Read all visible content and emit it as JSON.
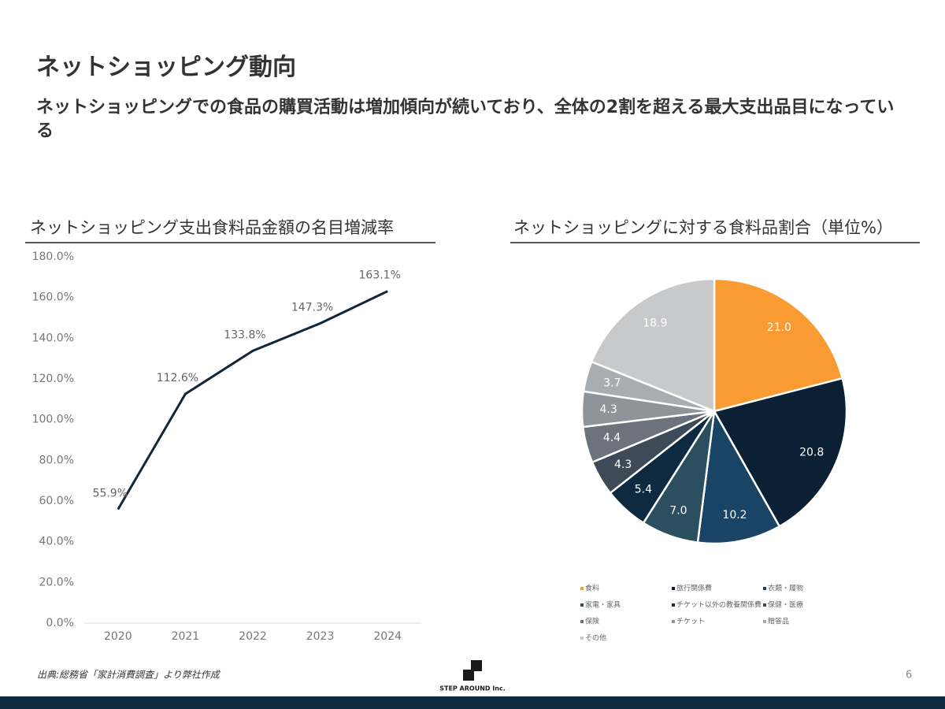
{
  "title": "ネットショッピング動向",
  "subtitle": "ネットショッピングでの食品の購買活動は増加傾向が続いており、全体の2割を超える最大支出品目になっている",
  "chart_data": [
    {
      "type": "line",
      "title": "ネットショッピング支出食料品金額の名目増減率",
      "categories": [
        "2020",
        "2021",
        "2022",
        "2023",
        "2024"
      ],
      "values": [
        55.9,
        112.6,
        133.8,
        147.3,
        163.1
      ],
      "value_labels": [
        "55.9%",
        "112.6%",
        "133.8%",
        "147.3%",
        "163.1%"
      ],
      "color": "#12263a",
      "grid": false,
      "ylim": [
        0,
        180
      ],
      "yticks": [
        {
          "value": 0,
          "label": "0.0%"
        },
        {
          "value": 20,
          "label": "20.0%"
        },
        {
          "value": 40,
          "label": "40.0%"
        },
        {
          "value": 60,
          "label": "60.0%"
        },
        {
          "value": 80,
          "label": "80.0%"
        },
        {
          "value": 100,
          "label": "100.0%"
        },
        {
          "value": 120,
          "label": "120.0%"
        },
        {
          "value": 140,
          "label": "140.0%"
        },
        {
          "value": 160,
          "label": "160.0%"
        },
        {
          "value": 180,
          "label": "180.0%"
        }
      ]
    },
    {
      "type": "pie",
      "title": "ネットショッピングに対する食料品割合（単位%）",
      "categories": [
        "食料",
        "旅行関係費",
        "衣類・履物",
        "家電・家具",
        "チケット以外の教養関係費",
        "保健・医療",
        "保険",
        "チケット",
        "贈答品",
        "その他"
      ],
      "values": [
        21.0,
        20.8,
        10.2,
        7.0,
        5.4,
        4.3,
        4.4,
        4.3,
        3.7,
        18.9
      ],
      "value_labels": [
        "21.0",
        "20.8",
        "10.2",
        "7.0",
        "5.4",
        "4.3",
        "4.4",
        "4.3",
        "3.7",
        "18.9"
      ],
      "colors": [
        "#f99b32",
        "#0b2033",
        "#1a4466",
        "#2b4f5e",
        "#0d2a40",
        "#3e4a57",
        "#6c737c",
        "#8f949a",
        "#a9acb0",
        "#c8c9cb"
      ]
    }
  ],
  "source": "出典:総務省「家計消費調査」より弊社作成",
  "logo": "STEP AROUND Inc.",
  "page_number": "6"
}
